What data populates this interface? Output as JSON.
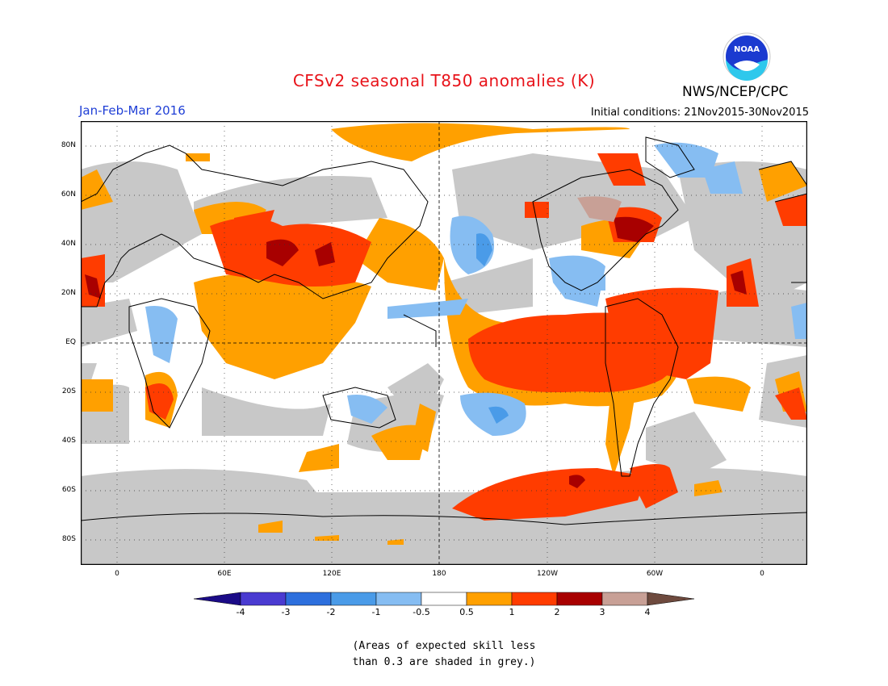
{
  "title": "CFSv2 seasonal T850 anomalies (K)",
  "agency": "NWS/NCEP/CPC",
  "logo_text": "NOAA",
  "season": "Jan-Feb-Mar 2016",
  "initial_conditions": "Initial conditions: 21Nov2015-30Nov2015",
  "lat_labels": [
    "80N",
    "60N",
    "40N",
    "20N",
    "EQ",
    "20S",
    "40S",
    "60S",
    "80S"
  ],
  "lon_labels": [
    "0",
    "60E",
    "120E",
    "180",
    "120W",
    "60W",
    "0"
  ],
  "colorbar": {
    "labels": [
      "-4",
      "-3",
      "-2",
      "-1",
      "-0.5",
      "0.5",
      "1",
      "2",
      "3",
      "4"
    ],
    "colors": [
      "#1b0b87",
      "#4a3bd1",
      "#2d6fdd",
      "#4a9be8",
      "#86bdf2",
      "#ffffff",
      "#ffa000",
      "#ff3c00",
      "#a80000",
      "#c8a096",
      "#6e4a3e"
    ]
  },
  "note_line1": "(Areas of expected skill less",
  "note_line2": "than 0.3 are shaded in grey.)"
}
